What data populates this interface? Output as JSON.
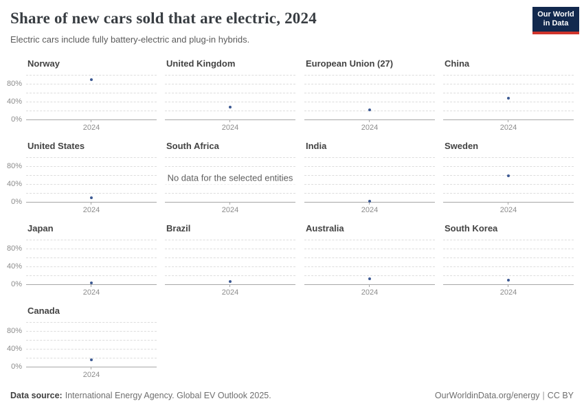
{
  "header": {
    "title": "Share of new cars sold that are electric, 2024",
    "subtitle": "Electric cars include fully battery-electric and plug-in hybrids.",
    "logo": {
      "line1": "Our World",
      "line2": "in Data",
      "bg_color": "#12294e",
      "accent_color": "#d0342c"
    }
  },
  "chart_data": {
    "type": "scatter",
    "title": "Share of new cars sold that are electric, 2024",
    "subtitle": "Electric cars include fully battery-electric and plug-in hybrids.",
    "facet_grid_columns": 4,
    "x": [
      2024
    ],
    "x_tick_label": "2024",
    "y_axis": {
      "range": [
        0,
        100
      ],
      "ticks": [
        0,
        40,
        80
      ],
      "tick_labels": [
        "0%",
        "40%",
        "80%"
      ],
      "gridlines_percent": [
        0,
        20,
        40,
        60,
        80,
        100
      ],
      "grid": "dashed"
    },
    "unit": "%",
    "point_color": "#3d5a93",
    "gridline_color": "#dcdcdc",
    "no_data_text": "No data for the selected entities",
    "legend": null,
    "facets": [
      {
        "name": "Norway",
        "year": 2024,
        "value": 89
      },
      {
        "name": "United Kingdom",
        "year": 2024,
        "value": 28
      },
      {
        "name": "European Union (27)",
        "year": 2024,
        "value": 21
      },
      {
        "name": "China",
        "year": 2024,
        "value": 47
      },
      {
        "name": "United States",
        "year": 2024,
        "value": 9
      },
      {
        "name": "South Africa",
        "year": 2024,
        "value": null,
        "no_data": true
      },
      {
        "name": "India",
        "year": 2024,
        "value": 2
      },
      {
        "name": "Sweden",
        "year": 2024,
        "value": 58
      },
      {
        "name": "Japan",
        "year": 2024,
        "value": 3
      },
      {
        "name": "Brazil",
        "year": 2024,
        "value": 6
      },
      {
        "name": "Australia",
        "year": 2024,
        "value": 12
      },
      {
        "name": "South Korea",
        "year": 2024,
        "value": 9
      },
      {
        "name": "Canada",
        "year": 2024,
        "value": 16
      }
    ]
  },
  "footer": {
    "source_label": "Data source:",
    "source_text": "International Energy Agency. Global EV Outlook 2025.",
    "url": "OurWorldinData.org/energy",
    "separator": "|",
    "license": "CC BY"
  }
}
